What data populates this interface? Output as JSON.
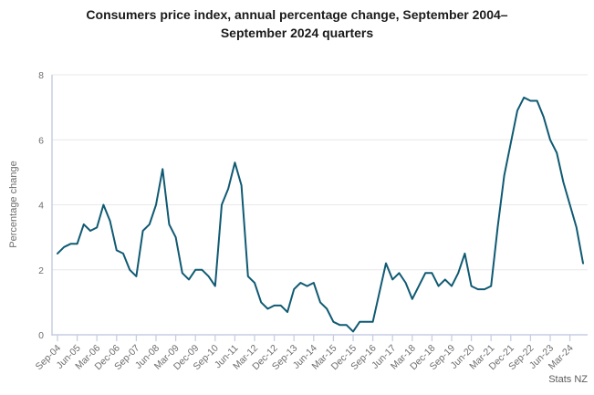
{
  "title": "Consumers price index, annual percentage change, September 2004–September 2024 quarters",
  "source": "Stats NZ",
  "colors": {
    "line": "#0f5a73",
    "grid": "#e8e8e8",
    "axis": "#c7cee4",
    "title_text": "#1a1a1a",
    "axis_text": "#6d6d6d",
    "source_text": "#5a5a5a",
    "background": "#ffffff"
  },
  "chart_data": {
    "type": "line",
    "title": "Consumers price index, annual percentage change, September 2004–September 2024 quarters",
    "xlabel": "",
    "ylabel": "Percentage change",
    "ylim": [
      0,
      8
    ],
    "yticks": [
      0,
      2,
      4,
      6,
      8
    ],
    "grid": true,
    "legend": false,
    "x_tick_every": 3,
    "source": "Stats NZ",
    "x": [
      "Sep-04",
      "Dec-04",
      "Mar-05",
      "Jun-05",
      "Sep-05",
      "Dec-05",
      "Mar-06",
      "Jun-06",
      "Sep-06",
      "Dec-06",
      "Mar-07",
      "Jun-07",
      "Sep-07",
      "Dec-07",
      "Mar-08",
      "Jun-08",
      "Sep-08",
      "Dec-08",
      "Mar-09",
      "Jun-09",
      "Sep-09",
      "Dec-09",
      "Mar-10",
      "Jun-10",
      "Sep-10",
      "Dec-10",
      "Mar-11",
      "Jun-11",
      "Sep-11",
      "Dec-11",
      "Mar-12",
      "Jun-12",
      "Sep-12",
      "Dec-12",
      "Mar-13",
      "Jun-13",
      "Sep-13",
      "Dec-13",
      "Mar-14",
      "Jun-14",
      "Sep-14",
      "Dec-14",
      "Mar-15",
      "Jun-15",
      "Sep-15",
      "Dec-15",
      "Mar-16",
      "Jun-16",
      "Sep-16",
      "Dec-16",
      "Mar-17",
      "Jun-17",
      "Sep-17",
      "Dec-17",
      "Mar-18",
      "Jun-18",
      "Sep-18",
      "Dec-18",
      "Mar-19",
      "Jun-19",
      "Sep-19",
      "Dec-19",
      "Mar-20",
      "Jun-20",
      "Sep-20",
      "Dec-20",
      "Mar-21",
      "Jun-21",
      "Sep-21",
      "Dec-21",
      "Mar-22",
      "Jun-22",
      "Sep-22",
      "Dec-22",
      "Mar-23",
      "Jun-23",
      "Sep-23",
      "Dec-23",
      "Mar-24",
      "Jun-24",
      "Sep-24"
    ],
    "x_tick_labels": [
      "Sep-04",
      "Jun-05",
      "Mar-06",
      "Dec-06",
      "Sep-07",
      "Jun-08",
      "Mar-09",
      "Dec-09",
      "Sep-10",
      "Jun-11",
      "Mar-12",
      "Dec-12",
      "Sep-13",
      "Jun-14",
      "Mar-15",
      "Dec-15",
      "Sep-16",
      "Jun-17",
      "Mar-18",
      "Dec-18",
      "Sep-19",
      "Jun-20",
      "Mar-21",
      "Dec-21",
      "Sep-22",
      "Jun-23",
      "Mar-24"
    ],
    "series": [
      {
        "name": "CPI annual percentage change",
        "values": [
          2.5,
          2.7,
          2.8,
          2.8,
          3.4,
          3.2,
          3.3,
          4.0,
          3.5,
          2.6,
          2.5,
          2.0,
          1.8,
          3.2,
          3.4,
          4.0,
          5.1,
          3.4,
          3.0,
          1.9,
          1.7,
          2.0,
          2.0,
          1.8,
          1.5,
          4.0,
          4.5,
          5.3,
          4.6,
          1.8,
          1.6,
          1.0,
          0.8,
          0.9,
          0.9,
          0.7,
          1.4,
          1.6,
          1.5,
          1.6,
          1.0,
          0.8,
          0.4,
          0.3,
          0.3,
          0.1,
          0.4,
          0.4,
          0.4,
          1.3,
          2.2,
          1.7,
          1.9,
          1.6,
          1.1,
          1.5,
          1.9,
          1.9,
          1.5,
          1.7,
          1.5,
          1.9,
          2.5,
          1.5,
          1.4,
          1.4,
          1.5,
          3.3,
          4.9,
          5.9,
          6.9,
          7.3,
          7.2,
          7.2,
          6.7,
          6.0,
          5.6,
          4.7,
          4.0,
          3.3,
          2.2
        ]
      }
    ]
  }
}
